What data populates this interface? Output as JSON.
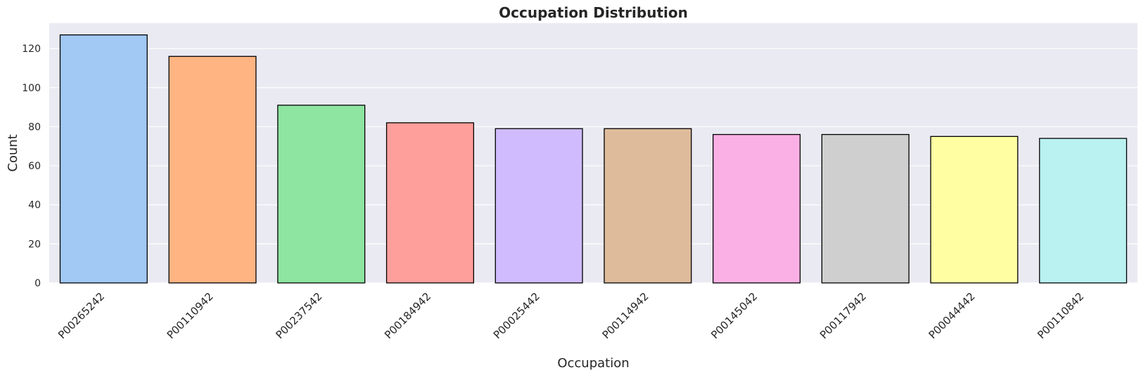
{
  "chart_data": {
    "type": "bar",
    "title": "Occupation Distribution",
    "xlabel": "Occupation",
    "ylabel": "Count",
    "categories": [
      "P00265242",
      "P00110942",
      "P00237542",
      "P00184942",
      "P00025442",
      "P00114942",
      "P00145042",
      "P00117942",
      "P00044442",
      "P00110842"
    ],
    "values": [
      127,
      116,
      91,
      82,
      79,
      79,
      76,
      76,
      75,
      74
    ],
    "colors": [
      "#a1c9f4",
      "#ffb482",
      "#8de5a1",
      "#ff9f9b",
      "#d0bbff",
      "#debb9b",
      "#fab0e4",
      "#cfcfcf",
      "#fffea3",
      "#b9f2f0"
    ],
    "ylim": [
      0,
      133
    ],
    "yticks": [
      0,
      20,
      40,
      60,
      80,
      100,
      120
    ],
    "grid": true,
    "legend": "none",
    "background_color": "#eaeaf2",
    "edge_color": "#000000"
  }
}
